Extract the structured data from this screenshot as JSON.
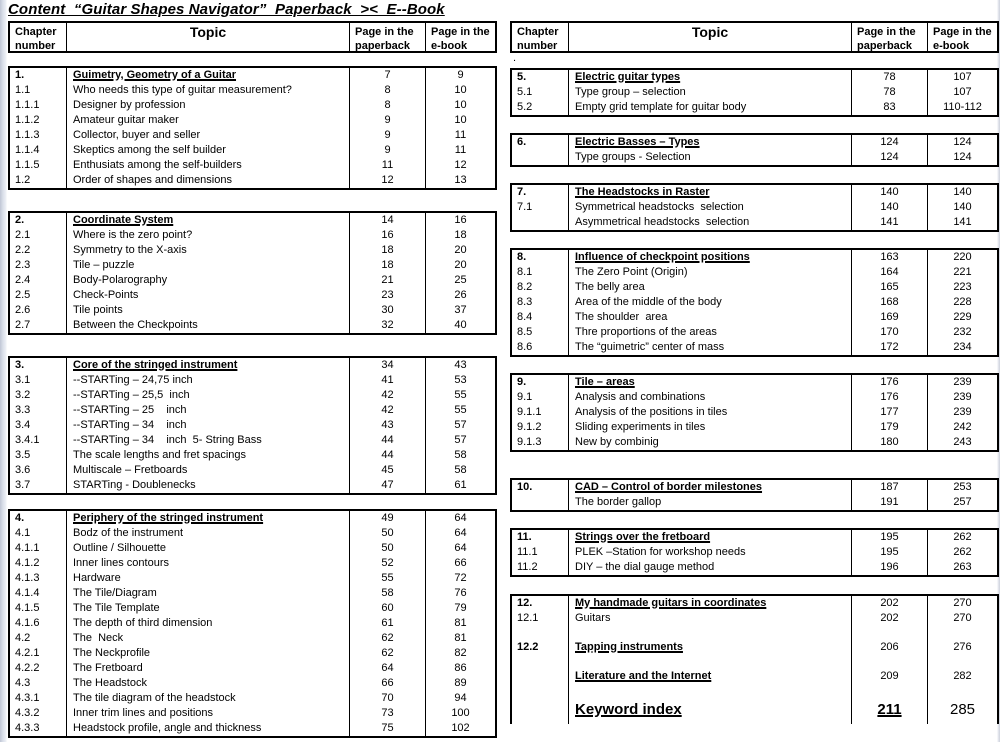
{
  "title": "Content  “Guitar Shapes Navigator”  Paperback  ><  E--Book",
  "stray_mark": ".",
  "colors": {
    "text": "#000000",
    "border": "#000000",
    "page_edge": "#dbe0ea"
  },
  "header": {
    "chapter": "Chapter\nnumber",
    "topic": "Topic",
    "paperback": "Page in the\npaperback",
    "ebook": "Page in the\ne-book"
  },
  "left_sections": [
    {
      "rows": [
        {
          "n": "1.",
          "t": "Guimetry, Geometry of a Guitar",
          "p": "7",
          "e": "9",
          "hb": true
        },
        {
          "n": "1.1",
          "t": "Who needs this type of guitar measurement?",
          "p": "8",
          "e": "10"
        },
        {
          "n": "1.1.1",
          "t": "Designer by profession",
          "p": "8",
          "e": "10"
        },
        {
          "n": "1.1.2",
          "t": "Amateur guitar maker",
          "p": "9",
          "e": "10"
        },
        {
          "n": "1.1.3",
          "t": "Collector, buyer and seller",
          "p": "9",
          "e": "11"
        },
        {
          "n": "1.1.4",
          "t": "Skeptics among the self builder",
          "p": "9",
          "e": "11"
        },
        {
          "n": "1.1.5",
          "t": "Enthusiats among the self-builders",
          "p": "11",
          "e": "12"
        },
        {
          "n": "1.2",
          "t": "Order of shapes and dimensions",
          "p": "12",
          "e": "13"
        }
      ]
    },
    {
      "rows": [
        {
          "n": "2.",
          "t": "Coordinate System",
          "p": "14",
          "e": "16",
          "hb": true
        },
        {
          "n": "2.1",
          "t": "Where is the zero point?",
          "p": "16",
          "e": "18"
        },
        {
          "n": "2.2",
          "t": "Symmetry to the X-axis",
          "p": "18",
          "e": "20"
        },
        {
          "n": "2.3",
          "t": "Tile – puzzle",
          "p": "18",
          "e": "20"
        },
        {
          "n": "2.4",
          "t": "Body-Polarography",
          "p": "21",
          "e": "25"
        },
        {
          "n": "2.5",
          "t": "Check-Points",
          "p": "23",
          "e": "26"
        },
        {
          "n": "2.6",
          "t": "Tile points",
          "p": "30",
          "e": "37"
        },
        {
          "n": "2.7",
          "t": "Between the Checkpoints",
          "p": "32",
          "e": "40"
        }
      ]
    },
    {
      "rows": [
        {
          "n": "3.",
          "t": "Core of the stringed instrument",
          "p": "34",
          "e": "43",
          "hb": true
        },
        {
          "n": "3.1",
          "t": "--STARTing – 24,75 inch",
          "p": "41",
          "e": "53"
        },
        {
          "n": "3.2",
          "t": "--STARTing – 25,5  inch",
          "p": "42",
          "e": "55"
        },
        {
          "n": "3.3",
          "t": "--STARTing – 25    inch",
          "p": "42",
          "e": "55"
        },
        {
          "n": "3.4",
          "t": "--STARTing – 34    inch",
          "p": "43",
          "e": "57"
        },
        {
          "n": "3.4.1",
          "t": "--STARTing – 34    inch  5- String Bass",
          "p": "44",
          "e": "57"
        },
        {
          "n": "3.5",
          "t": "The scale lengths and fret spacings",
          "p": "44",
          "e": "58"
        },
        {
          "n": "3.6",
          "t": "Multiscale – Fretboards",
          "p": "45",
          "e": "58"
        },
        {
          "n": "3.7",
          "t": "STARTing - Doublenecks",
          "p": "47",
          "e": "61"
        }
      ]
    },
    {
      "rows": [
        {
          "n": "4.",
          "t": "Periphery of the stringed instrument",
          "p": "49",
          "e": "64",
          "hb": true
        },
        {
          "n": "4.1",
          "t": "Bodz of the instrument",
          "p": "50",
          "e": "64"
        },
        {
          "n": "4.1.1",
          "t": "Outline / Silhouette",
          "p": "50",
          "e": "64"
        },
        {
          "n": "4.1.2",
          "t": "Inner lines contours",
          "p": "52",
          "e": "66"
        },
        {
          "n": "4.1.3",
          "t": "Hardware",
          "p": "55",
          "e": "72"
        },
        {
          "n": "4.1.4",
          "t": "The Tile/Diagram",
          "p": "58",
          "e": "76"
        },
        {
          "n": "4.1.5",
          "t": "The Tile Template",
          "p": "60",
          "e": "79"
        },
        {
          "n": "4.1.6",
          "t": "The depth of third dimension",
          "p": "61",
          "e": "81"
        },
        {
          "n": "4.2",
          "t": "The  Neck",
          "p": "62",
          "e": "81"
        },
        {
          "n": "4.2.1",
          "t": "The Neckprofile",
          "p": "62",
          "e": "82"
        },
        {
          "n": "4.2.2",
          "t": "The Fretboard",
          "p": "64",
          "e": "86"
        },
        {
          "n": "4.3",
          "t": "The Headstock",
          "p": "66",
          "e": "89"
        },
        {
          "n": "4.3.1",
          "t": "The tile diagram of the headstock",
          "p": "70",
          "e": "94"
        },
        {
          "n": "4.3.2",
          "t": "Inner trim lines and positions",
          "p": "73",
          "e": "100"
        },
        {
          "n": "4.3.3",
          "t": "Headstock profile, angle and thickness",
          "p": "75",
          "e": "102"
        }
      ]
    }
  ],
  "right_sections": [
    {
      "rows": [
        {
          "n": "5.",
          "t": "Electric guitar types",
          "p": "78",
          "e": "107",
          "hb": true
        },
        {
          "n": "5.1",
          "t": "Type group – selection",
          "p": "78",
          "e": "107"
        },
        {
          "n": "5.2",
          "t": "Empty grid template for guitar body",
          "p": "83",
          "e": "110-112"
        }
      ]
    },
    {
      "rows": [
        {
          "n": "6.",
          "t": "Electric Basses – Types",
          "p": "124",
          "e": "124",
          "hb": true
        },
        {
          "n": "",
          "t": "Type groups - Selection",
          "p": "124",
          "e": "124"
        }
      ]
    },
    {
      "rows": [
        {
          "n": "7.",
          "t": "The Headstocks in Raster",
          "p": "140",
          "e": "140",
          "hb": true
        },
        {
          "n": "7.1",
          "t": "Symmetrical headstocks  selection",
          "p": "140",
          "e": "140"
        },
        {
          "n": "",
          "t": "Asymmetrical headstocks  selection",
          "p": "141",
          "e": "141"
        }
      ]
    },
    {
      "rows": [
        {
          "n": "8.",
          "t": "Influence of checkpoint positions",
          "p": "163",
          "e": "220",
          "hb": true
        },
        {
          "n": "8.1",
          "t": "The Zero Point (Origin)",
          "p": "164",
          "e": "221"
        },
        {
          "n": "8.2",
          "t": "The belly area",
          "p": "165",
          "e": "223"
        },
        {
          "n": "8.3",
          "t": "Area of the middle of the body",
          "p": "168",
          "e": "228"
        },
        {
          "n": "8.4",
          "t": "The shoulder  area",
          "p": "169",
          "e": "229"
        },
        {
          "n": "8.5",
          "t": "Thre proportions of the areas",
          "p": "170",
          "e": "232"
        },
        {
          "n": "8.6",
          "t": "The “guimetric” center of mass",
          "p": "172",
          "e": "234"
        }
      ]
    },
    {
      "rows": [
        {
          "n": "9.",
          "t": "Tile – areas",
          "p": "176",
          "e": "239",
          "hb": true
        },
        {
          "n": "9.1",
          "t": "Analysis and combinations",
          "p": "176",
          "e": "239"
        },
        {
          "n": "9.1.1",
          "t": "Analysis of the positions in tiles",
          "p": "177",
          "e": "239"
        },
        {
          "n": "9.1.2",
          "t": "Sliding experiments in tiles",
          "p": "179",
          "e": "242"
        },
        {
          "n": "9.1.3",
          "t": "New by combinig",
          "p": "180",
          "e": "243"
        }
      ]
    },
    {
      "rows": [
        {
          "n": "10.",
          "t": "CAD – Control of border milestones",
          "p": "187",
          "e": "253",
          "hb": true
        },
        {
          "n": "",
          "t": "The border gallop",
          "p": "191",
          "e": "257"
        }
      ]
    },
    {
      "rows": [
        {
          "n": "11.",
          "t": "Strings over the fretboard",
          "p": "195",
          "e": "262",
          "hb": true
        },
        {
          "n": "11.1",
          "t": "PLEK –Station for workshop needs",
          "p": "195",
          "e": "262"
        },
        {
          "n": "11.2",
          "t": "DIY – the dial gauge method",
          "p": "196",
          "e": "263"
        }
      ]
    },
    {
      "open_bottom": true,
      "rows": [
        {
          "n": "12.",
          "t": "My handmade guitars in coordinates",
          "p": "202",
          "e": "270",
          "hb": true
        },
        {
          "n": "12.1",
          "t": "Guitars",
          "p": "202",
          "e": "270"
        },
        {
          "n": "",
          "t": "",
          "p": "",
          "e": "",
          "blank": true
        },
        {
          "n": "12.2",
          "t": "Tapping instruments",
          "p": "206",
          "e": "276",
          "hb": true
        },
        {
          "n": "",
          "t": "",
          "p": "",
          "e": "",
          "blank": true
        },
        {
          "n": "",
          "t": "Literature and the Internet",
          "p": "209",
          "e": "282",
          "hb": true
        },
        {
          "n": "",
          "t": "",
          "p": "",
          "e": "",
          "blank": true
        },
        {
          "n": "",
          "t": "Keyword index",
          "p": "211",
          "e": "285",
          "hb": true,
          "big": true,
          "pu": true
        }
      ]
    }
  ]
}
